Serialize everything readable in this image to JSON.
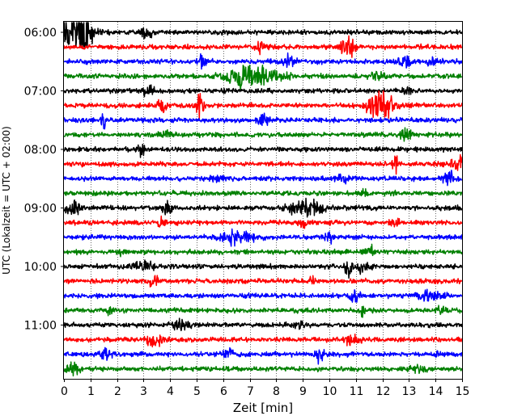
{
  "chart_data": {
    "type": "line",
    "xlabel": "Zeit  [min]",
    "ylabel": "UTC (Lokalzeit = UTC + 02:00)",
    "xlim": [
      0,
      15
    ],
    "x_ticks": [
      "0",
      "1",
      "2",
      "3",
      "4",
      "5",
      "6",
      "7",
      "8",
      "9",
      "10",
      "11",
      "12",
      "13",
      "14",
      "15"
    ],
    "y_ticks": [
      "06:00",
      "07:00",
      "08:00",
      "09:00",
      "10:00",
      "11:00"
    ],
    "grid_x": "dotted",
    "trace_interval_min": 15,
    "trace_colors": [
      "#000000",
      "#ff0000",
      "#0000ff",
      "#008000"
    ],
    "traces": [
      {
        "start": "06:00",
        "events": [
          {
            "t": 0.5,
            "amp": 2.6,
            "dur": 0.55
          },
          {
            "t": 0.8,
            "amp": 1.2,
            "dur": 0.2
          },
          {
            "t": 3.1,
            "amp": 0.7,
            "dur": 0.2
          }
        ]
      },
      {
        "start": "06:15",
        "events": [
          {
            "t": 7.4,
            "amp": 0.8,
            "dur": 0.2
          },
          {
            "t": 10.7,
            "amp": 1.1,
            "dur": 0.25
          }
        ]
      },
      {
        "start": "06:30",
        "events": [
          {
            "t": 5.2,
            "amp": 0.6,
            "dur": 0.25
          },
          {
            "t": 8.5,
            "amp": 0.7,
            "dur": 0.2
          },
          {
            "t": 12.9,
            "amp": 0.6,
            "dur": 0.25
          },
          {
            "t": 13.9,
            "amp": 0.5,
            "dur": 0.2
          }
        ]
      },
      {
        "start": "06:45",
        "events": [
          {
            "t": 7.1,
            "amp": 1.3,
            "dur": 0.9
          },
          {
            "t": 11.8,
            "amp": 0.5,
            "dur": 0.2
          }
        ]
      },
      {
        "start": "07:00",
        "events": [
          {
            "t": 3.2,
            "amp": 0.8,
            "dur": 0.2
          },
          {
            "t": 12.9,
            "amp": 0.4,
            "dur": 0.2
          }
        ]
      },
      {
        "start": "07:15",
        "events": [
          {
            "t": 3.7,
            "amp": 0.6,
            "dur": 0.2
          },
          {
            "t": 5.1,
            "amp": 1.3,
            "dur": 0.15
          },
          {
            "t": 11.9,
            "amp": 1.6,
            "dur": 0.5
          }
        ]
      },
      {
        "start": "07:30",
        "events": [
          {
            "t": 1.5,
            "amp": 1.6,
            "dur": 0.1
          },
          {
            "t": 7.5,
            "amp": 0.8,
            "dur": 0.2
          }
        ]
      },
      {
        "start": "07:45",
        "events": [
          {
            "t": 3.8,
            "amp": 0.6,
            "dur": 0.2
          },
          {
            "t": 12.9,
            "amp": 0.7,
            "dur": 0.2
          }
        ]
      },
      {
        "start": "08:00",
        "events": [
          {
            "t": 2.9,
            "amp": 0.6,
            "dur": 0.2
          }
        ]
      },
      {
        "start": "08:15",
        "events": [
          {
            "t": 12.5,
            "amp": 1.0,
            "dur": 0.1
          },
          {
            "t": 14.9,
            "amp": 0.7,
            "dur": 0.3
          }
        ]
      },
      {
        "start": "08:30",
        "events": [
          {
            "t": 5.7,
            "amp": 0.5,
            "dur": 0.2
          },
          {
            "t": 10.5,
            "amp": 0.4,
            "dur": 0.2
          },
          {
            "t": 14.5,
            "amp": 0.6,
            "dur": 0.25
          }
        ]
      },
      {
        "start": "08:45",
        "events": [
          {
            "t": 11.3,
            "amp": 0.4,
            "dur": 0.15
          }
        ]
      },
      {
        "start": "09:00",
        "events": [
          {
            "t": 0.3,
            "amp": 0.8,
            "dur": 0.3
          },
          {
            "t": 3.9,
            "amp": 0.7,
            "dur": 0.2
          },
          {
            "t": 9.1,
            "amp": 1.0,
            "dur": 0.6
          }
        ]
      },
      {
        "start": "09:15",
        "events": [
          {
            "t": 3.7,
            "amp": 0.6,
            "dur": 0.15
          },
          {
            "t": 9.0,
            "amp": 0.6,
            "dur": 0.15
          },
          {
            "t": 12.5,
            "amp": 0.6,
            "dur": 0.15
          }
        ]
      },
      {
        "start": "09:30",
        "events": [
          {
            "t": 6.5,
            "amp": 0.7,
            "dur": 0.6
          },
          {
            "t": 10.0,
            "amp": 0.7,
            "dur": 0.15
          }
        ]
      },
      {
        "start": "09:45",
        "events": [
          {
            "t": 11.5,
            "amp": 0.6,
            "dur": 0.2
          },
          {
            "t": 2.1,
            "amp": 0.5,
            "dur": 0.1
          }
        ]
      },
      {
        "start": "10:00",
        "events": [
          {
            "t": 3.0,
            "amp": 0.4,
            "dur": 0.5
          },
          {
            "t": 10.7,
            "amp": 1.8,
            "dur": 0.1
          },
          {
            "t": 11.2,
            "amp": 0.8,
            "dur": 0.3
          }
        ]
      },
      {
        "start": "10:15",
        "events": [
          {
            "t": 3.4,
            "amp": 0.6,
            "dur": 0.2
          },
          {
            "t": 9.4,
            "amp": 0.4,
            "dur": 0.2
          }
        ]
      },
      {
        "start": "10:30",
        "events": [
          {
            "t": 11.0,
            "amp": 0.6,
            "dur": 0.2
          },
          {
            "t": 13.8,
            "amp": 0.5,
            "dur": 0.4
          }
        ]
      },
      {
        "start": "10:45",
        "events": [
          {
            "t": 1.7,
            "amp": 0.5,
            "dur": 0.15
          },
          {
            "t": 11.2,
            "amp": 0.6,
            "dur": 0.2
          },
          {
            "t": 14.2,
            "amp": 0.4,
            "dur": 0.15
          }
        ]
      },
      {
        "start": "11:00",
        "events": [
          {
            "t": 4.3,
            "amp": 0.5,
            "dur": 0.4
          },
          {
            "t": 8.8,
            "amp": 0.4,
            "dur": 0.3
          }
        ]
      },
      {
        "start": "11:15",
        "events": [
          {
            "t": 3.4,
            "amp": 0.9,
            "dur": 0.3
          },
          {
            "t": 10.9,
            "amp": 0.5,
            "dur": 0.3
          }
        ]
      },
      {
        "start": "11:30",
        "events": [
          {
            "t": 1.6,
            "amp": 0.7,
            "dur": 0.25
          },
          {
            "t": 6.2,
            "amp": 0.5,
            "dur": 0.2
          },
          {
            "t": 9.6,
            "amp": 0.7,
            "dur": 0.2
          },
          {
            "t": 14.1,
            "amp": 0.4,
            "dur": 0.2
          }
        ]
      },
      {
        "start": "11:45",
        "events": [
          {
            "t": 0.3,
            "amp": 0.6,
            "dur": 0.3
          },
          {
            "t": 13.4,
            "amp": 0.6,
            "dur": 0.25
          }
        ]
      }
    ]
  }
}
